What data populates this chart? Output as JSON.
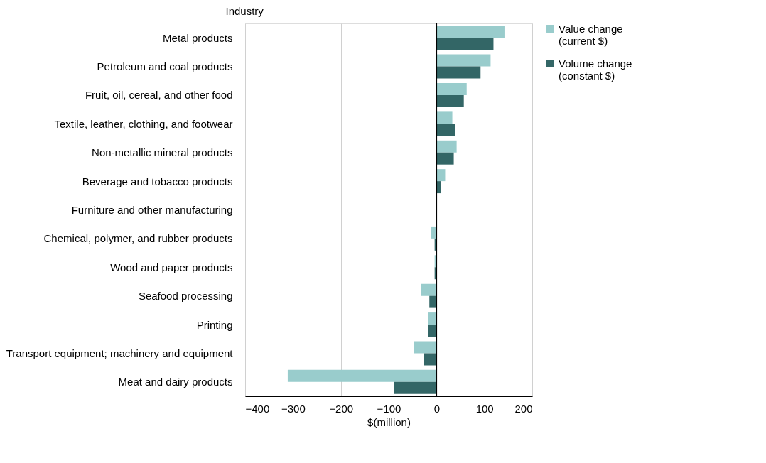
{
  "chart_data": {
    "type": "bar",
    "orientation": "horizontal",
    "ylabel": "Industry",
    "xlabel": "$(million)",
    "categories": [
      "Metal products",
      "Petroleum and coal products",
      "Fruit, oil, cereal, and other food",
      "Textile, leather, clothing, and footwear",
      "Non-metallic mineral products",
      "Beverage and tobacco products",
      "Furniture and other manufacturing",
      "Chemical, polymer, and rubber products",
      "Wood and paper products",
      "Seafood processing",
      "Printing",
      "Transport equipment; machinery and equipment",
      "Meat and dairy products"
    ],
    "series": [
      {
        "name": "Value change (current $)",
        "color": "#99cccc",
        "values": [
          142,
          113,
          63,
          33,
          42,
          18,
          0,
          -12,
          -4,
          -33,
          -18,
          -48,
          -311
        ]
      },
      {
        "name": "Volume change (constant $)",
        "color": "#336666",
        "values": [
          119,
          92,
          57,
          39,
          36,
          9,
          0,
          -4,
          -4,
          -15,
          -18,
          -27,
          -89
        ]
      }
    ],
    "xlim": [
      -400,
      200
    ],
    "xticks": [
      -400,
      -300,
      -200,
      -100,
      0,
      100,
      200
    ],
    "ref_lines": [
      {
        "axis": "x",
        "value": 0,
        "color": "#000000"
      }
    ],
    "grid": "x",
    "legend": "right"
  }
}
